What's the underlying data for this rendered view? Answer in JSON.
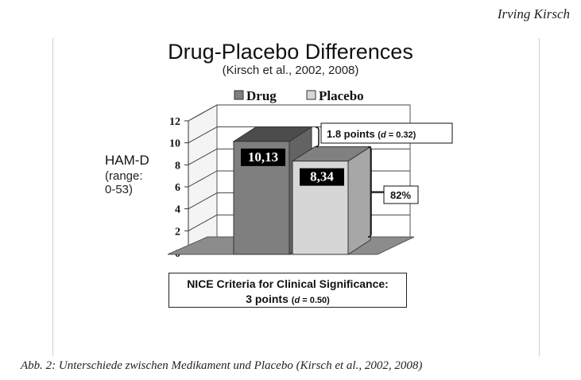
{
  "header": {
    "author": "Irving Kirsch"
  },
  "chart_data": {
    "type": "bar",
    "title": "Drug-Placebo Differences",
    "subtitle": "(Kirsch et al., 2002, 2008)",
    "ylabel": "HAM-D",
    "ylabel_detail": [
      "(range:",
      "0-53)"
    ],
    "ylim": [
      0,
      12
    ],
    "yticks": [
      0,
      2,
      4,
      6,
      8,
      10,
      12
    ],
    "grid": true,
    "legend_position": "top",
    "categories": [
      "Drug",
      "Placebo"
    ],
    "values": [
      10.13,
      8.34
    ],
    "data_labels": [
      "10,13",
      "8,34"
    ],
    "colors": {
      "Drug": "#7f7f7f",
      "Placebo": "#d6d6d6"
    },
    "annotations": {
      "difference": {
        "text": "1.8 points",
        "d_symbol": "d",
        "d_value": "= 0.32"
      },
      "ratio": {
        "text": "82%"
      },
      "nice": {
        "line1": "NICE Criteria for Clinical Significance:",
        "line2_text": "3 points",
        "d_symbol": "d",
        "d_value": "= 0.50"
      }
    }
  },
  "caption": "Abb. 2: Unterschiede zwischen Medikament und Placebo (Kirsch et al., 2002, 2008)"
}
